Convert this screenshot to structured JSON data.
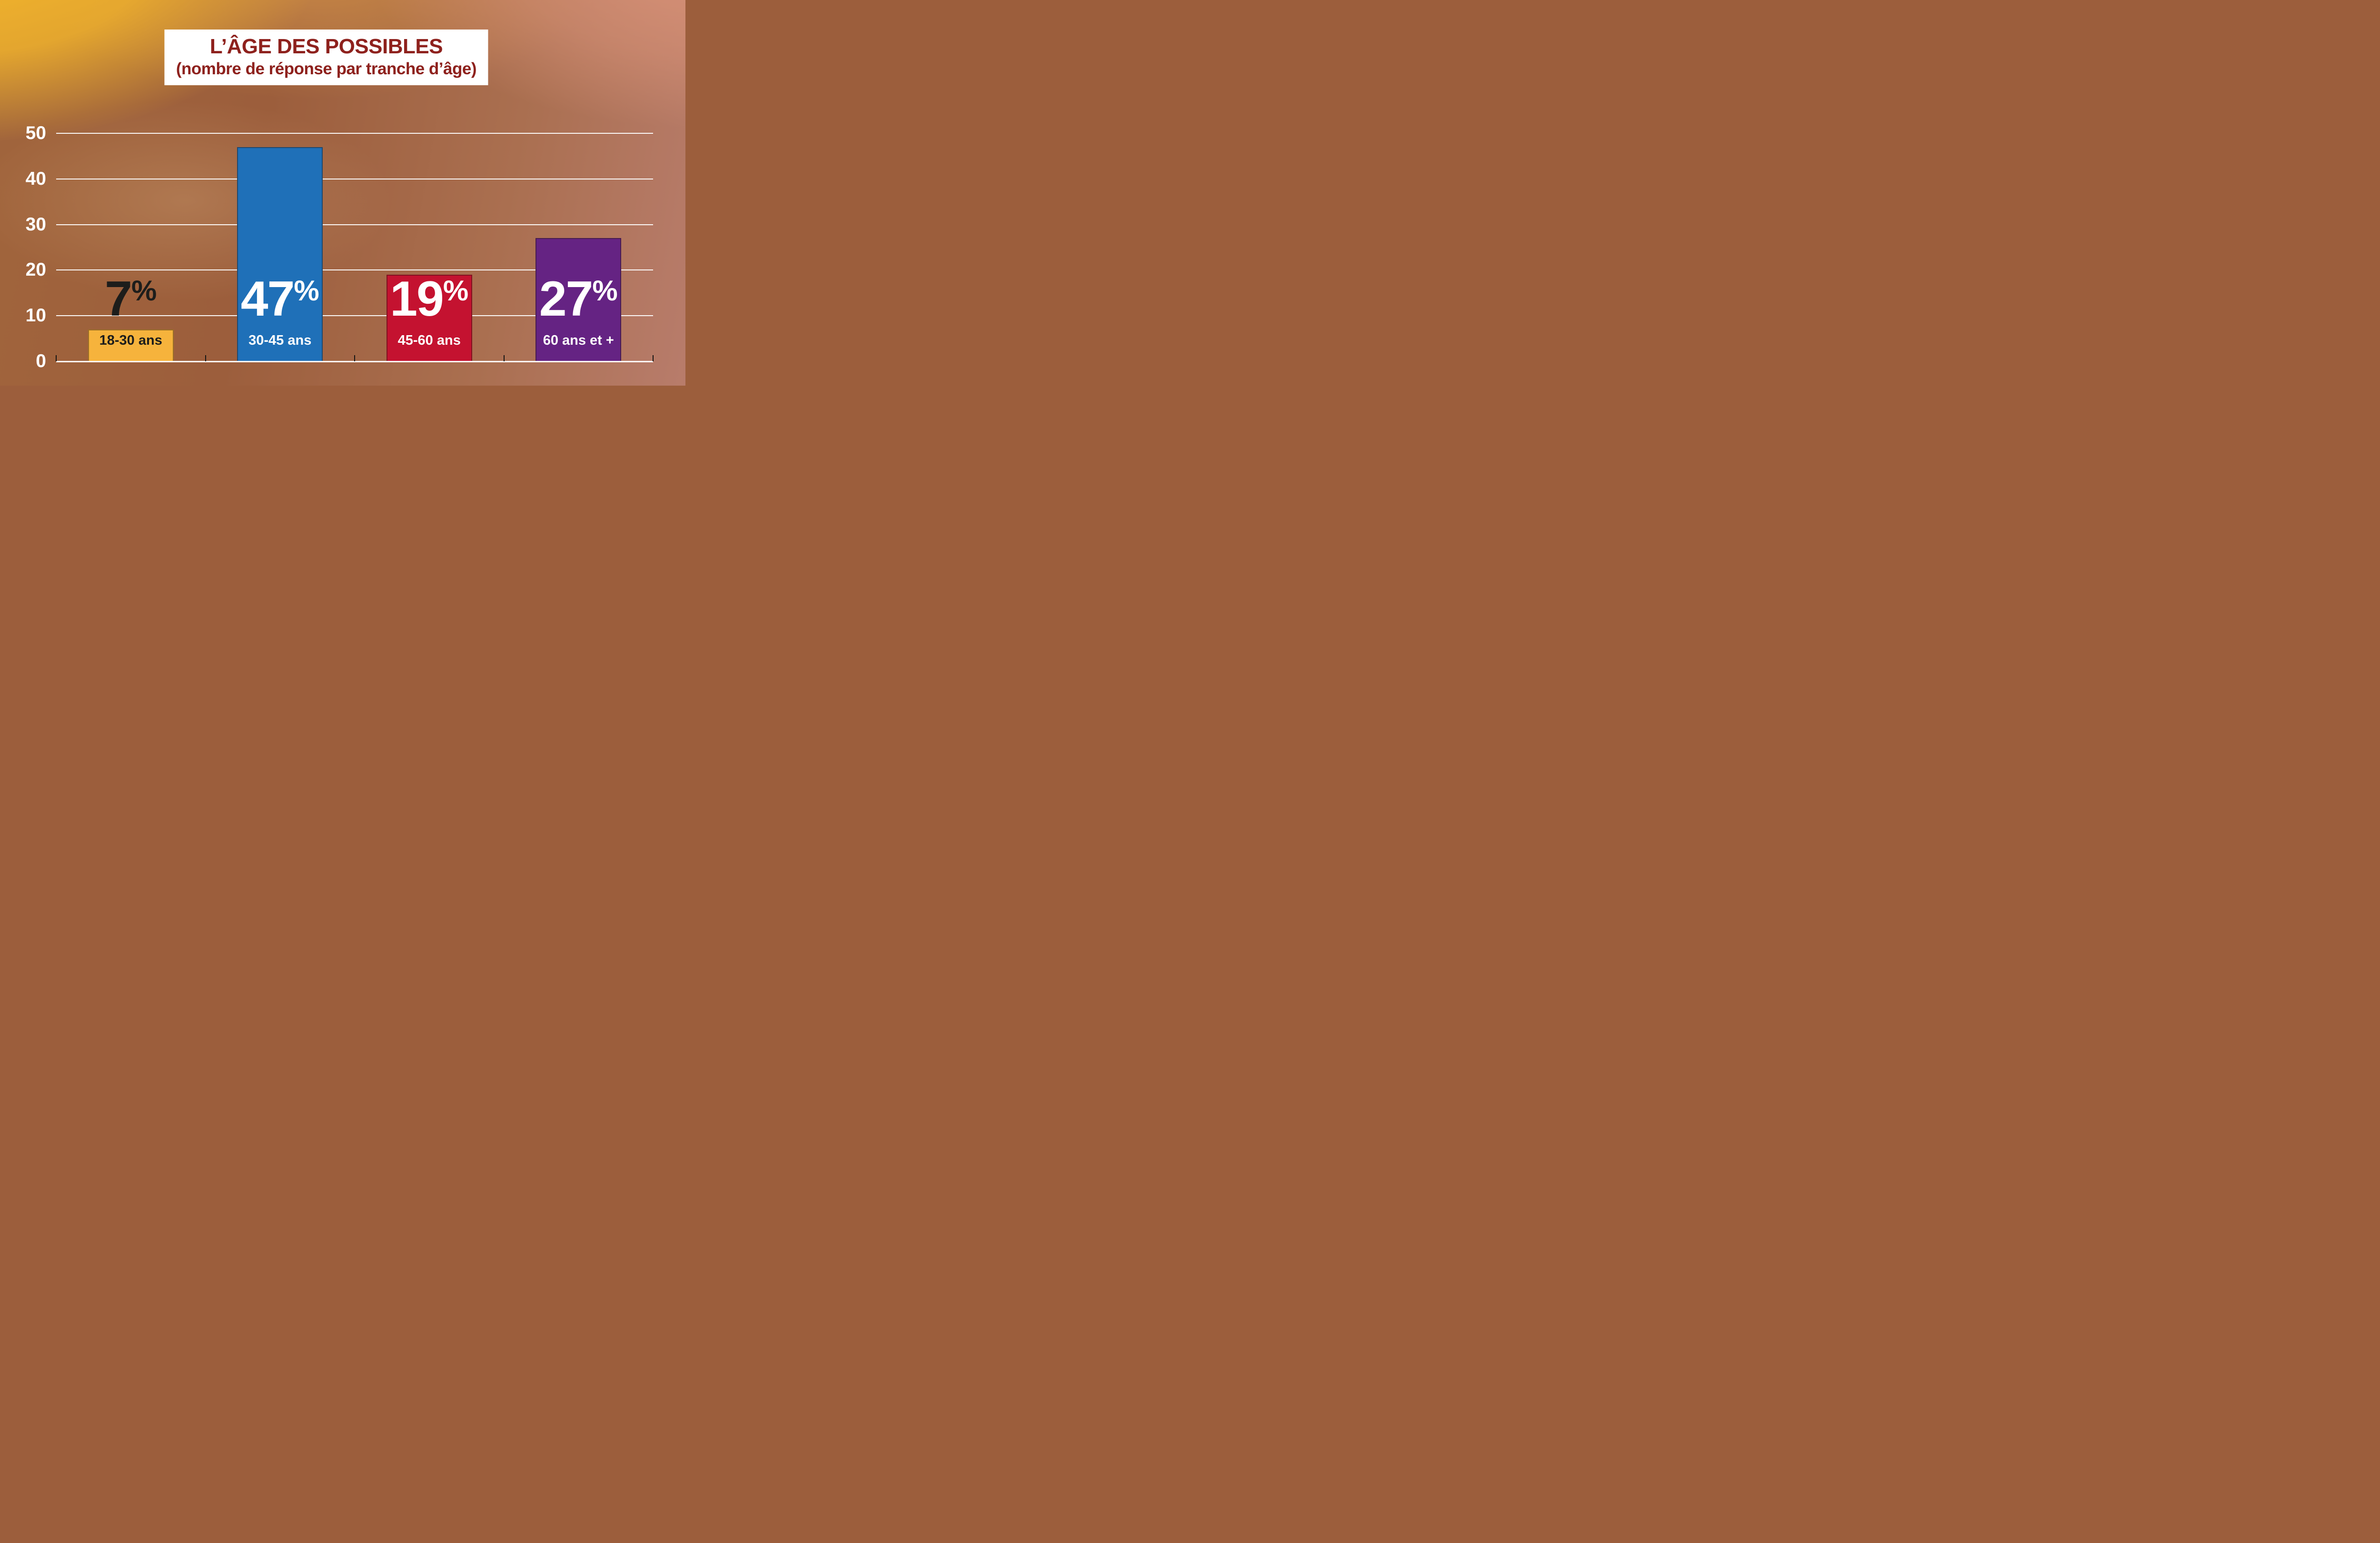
{
  "chart_data": {
    "type": "bar",
    "title": "L’ÂGE DES POSSIBLES",
    "subtitle": "(nombre de réponse par tranche d’âge)",
    "categories": [
      "18-30 ans",
      "30-45 ans",
      "45-60 ans",
      "60 ans et +"
    ],
    "values": [
      7,
      47,
      19,
      27
    ],
    "value_labels": [
      "7%",
      "47%",
      "19%",
      "27%"
    ],
    "unit": "%",
    "xlabel": "",
    "ylabel": "",
    "ylim": [
      0,
      50
    ],
    "yticks": [
      0,
      10,
      20,
      30,
      40,
      50
    ],
    "grid": true,
    "legend": "none",
    "bar_colors": [
      "#F6B33C",
      "#1F70B8",
      "#C41230",
      "#652383"
    ],
    "value_label_colors": [
      "#1D1D1B",
      "#FFFFFF",
      "#FFFFFF",
      "#FFFFFF"
    ],
    "category_label_colors": [
      "#1D1D1B",
      "#FFFFFF",
      "#FFFFFF",
      "#FFFFFF"
    ]
  },
  "style": {
    "title_color": "#8E211D",
    "title_background": "#FFFFFF",
    "grid_color": "#FFFFFF",
    "axis_color": "#FFFFFF",
    "ytick_label_color": "#FFFFFF",
    "tick_mark_color": "#141414",
    "background_top_left": "#F5B72B",
    "background_top_mid": "#CA8A45",
    "background_top_right": "#D79177",
    "background_bottom_left": "#9C5E3C",
    "background_bottom_right": "#B87C6B"
  }
}
